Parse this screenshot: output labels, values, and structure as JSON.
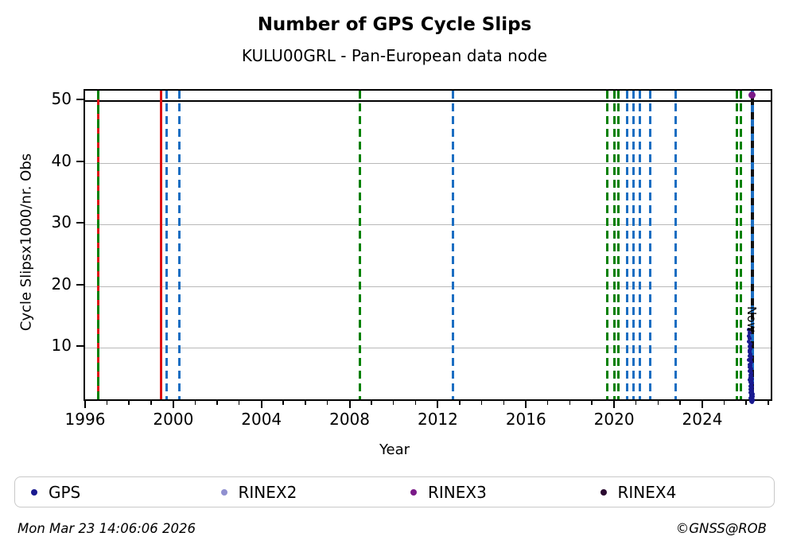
{
  "header": {
    "title": "Number of GPS Cycle Slips",
    "subtitle": "KULU00GRL - Pan-European data node"
  },
  "footer": {
    "timestamp": "Mon Mar 23 14:06:06 2026",
    "credit": "©GNSS@ROB"
  },
  "legend": {
    "items": [
      {
        "label": "GPS",
        "color": "#1a1a90"
      },
      {
        "label": "RINEX2",
        "color": "#9090d0"
      },
      {
        "label": "RINEX3",
        "color": "#7a1a88"
      },
      {
        "label": "RINEX4",
        "color": "#2a0a30"
      }
    ]
  },
  "colors": {
    "event_green": "#008000",
    "event_blue": "#1b6ec2",
    "event_red": "#dd1111",
    "now_black": "#111111",
    "grid_gray": "#b9b9b9",
    "gps_navy": "#1a1a90",
    "rinex3_purple": "#7a1a88"
  },
  "chart_data": {
    "type": "scatter",
    "title": "Number of GPS Cycle Slips",
    "subtitle": "KULU00GRL - Pan-European data node",
    "xlabel": "Year",
    "ylabel": "Cycle Slipsx1000/nr. Obs",
    "now_label": "Now",
    "xlim": [
      1995.93,
      2027.18
    ],
    "ylim": [
      1.0,
      51.7
    ],
    "xticks": [
      1996,
      2000,
      2004,
      2008,
      2012,
      2016,
      2020,
      2024
    ],
    "yticks": [
      10,
      20,
      30,
      40,
      50
    ],
    "minor_xtick_range": [
      1996,
      2027
    ],
    "grid_values": [
      10,
      20,
      30,
      40
    ],
    "threshold_line_y": 50,
    "now_x": 2026.17,
    "vlines": [
      {
        "year": 1996.54,
        "style": "green-red-dashed"
      },
      {
        "year": 1999.36,
        "style": "red-solid"
      },
      {
        "year": 1999.61,
        "style": "blue-dashed"
      },
      {
        "year": 2000.19,
        "style": "blue-dashed"
      },
      {
        "year": 2008.38,
        "style": "green-dashed"
      },
      {
        "year": 2012.6,
        "style": "blue-dashed"
      },
      {
        "year": 2019.6,
        "style": "green-dashed"
      },
      {
        "year": 2019.93,
        "style": "green-dashed"
      },
      {
        "year": 2020.11,
        "style": "green-dashed"
      },
      {
        "year": 2020.51,
        "style": "blue-dashed"
      },
      {
        "year": 2020.8,
        "style": "blue-dashed"
      },
      {
        "year": 2021.09,
        "style": "blue-dashed"
      },
      {
        "year": 2021.56,
        "style": "blue-dashed"
      },
      {
        "year": 2022.71,
        "style": "blue-dashed"
      },
      {
        "year": 2025.49,
        "style": "green-dashed"
      },
      {
        "year": 2025.67,
        "style": "green-dashed"
      },
      {
        "year": 2026.17,
        "style": "blue-black-dashed"
      }
    ],
    "series": [
      {
        "name": "GPS",
        "marker_color": "#1a1a90",
        "marker_size": 5,
        "points": [
          [
            2026.04,
            13.0
          ],
          [
            2026.06,
            12.4
          ],
          [
            2026.03,
            11.9
          ],
          [
            2026.08,
            11.5
          ],
          [
            2026.05,
            11.0
          ],
          [
            2026.1,
            10.6
          ],
          [
            2026.07,
            10.2
          ],
          [
            2026.12,
            9.9
          ],
          [
            2026.06,
            9.6
          ],
          [
            2026.09,
            9.3
          ],
          [
            2026.11,
            9.0
          ],
          [
            2026.08,
            8.7
          ],
          [
            2026.13,
            8.4
          ],
          [
            2026.05,
            8.1
          ],
          [
            2026.1,
            7.9
          ],
          [
            2026.14,
            7.6
          ],
          [
            2026.07,
            7.3
          ],
          [
            2026.12,
            7.1
          ],
          [
            2026.09,
            6.9
          ],
          [
            2026.15,
            6.6
          ],
          [
            2026.11,
            6.4
          ],
          [
            2026.08,
            6.2
          ],
          [
            2026.13,
            6.0
          ],
          [
            2026.16,
            5.8
          ],
          [
            2026.1,
            5.6
          ],
          [
            2026.14,
            5.4
          ],
          [
            2026.12,
            5.2
          ],
          [
            2026.17,
            5.0
          ],
          [
            2026.09,
            4.8
          ],
          [
            2026.15,
            4.6
          ],
          [
            2026.11,
            4.4
          ],
          [
            2026.18,
            4.3
          ],
          [
            2026.13,
            4.1
          ],
          [
            2026.16,
            3.9
          ],
          [
            2026.1,
            3.8
          ],
          [
            2026.19,
            3.6
          ],
          [
            2026.14,
            3.5
          ],
          [
            2026.12,
            3.3
          ],
          [
            2026.17,
            3.2
          ],
          [
            2026.2,
            3.0
          ],
          [
            2026.15,
            2.9
          ],
          [
            2026.11,
            2.8
          ],
          [
            2026.18,
            2.7
          ],
          [
            2026.13,
            2.6
          ],
          [
            2026.21,
            2.5
          ],
          [
            2026.16,
            2.4
          ],
          [
            2026.19,
            2.3
          ],
          [
            2026.14,
            2.2
          ],
          [
            2026.22,
            2.1
          ],
          [
            2026.17,
            2.0
          ],
          [
            2026.12,
            1.9
          ],
          [
            2026.2,
            1.8
          ],
          [
            2026.15,
            1.7
          ],
          [
            2026.23,
            1.6
          ],
          [
            2026.18,
            1.5
          ],
          [
            2026.21,
            1.4
          ],
          [
            2026.16,
            1.3
          ],
          [
            2026.19,
            1.2
          ]
        ]
      },
      {
        "name": "RINEX3",
        "marker_color": "#7a1a88",
        "marker_size": 9,
        "points": [
          [
            2026.17,
            51.0
          ]
        ]
      }
    ],
    "legend_entries": [
      "GPS",
      "RINEX2",
      "RINEX3",
      "RINEX4"
    ]
  }
}
